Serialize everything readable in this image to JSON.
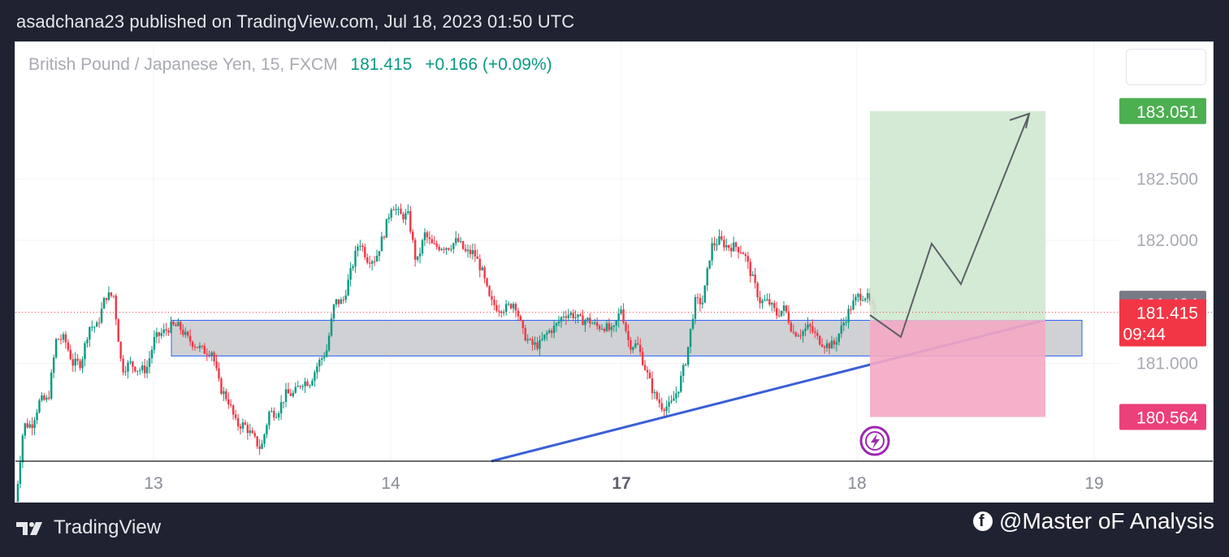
{
  "header": {
    "publish_text": "asadchana23 published on TradingView.com, Jul 18, 2023 01:50 UTC"
  },
  "legend": {
    "symbol": "British Pound / Japanese Yen, 15, FXCM",
    "last_price": "181.415",
    "change": "+0.166 (+0.09%)"
  },
  "footer": {
    "brand": "TradingView",
    "credit": "@Master oF Analysis"
  },
  "colors": {
    "up": "#089981",
    "down": "#f23645",
    "zone_fill": "#c8c9cd",
    "zone_border": "#2962ff",
    "trendline": "#3a5fd6",
    "target_fill": "#cfe8cf",
    "stop_fill": "#f4a8c4",
    "target_label": "#4caf50",
    "stop_label": "#ec407a",
    "current_label": "#f23645",
    "prev_label": "#787b86"
  },
  "chart_data": {
    "type": "candlestick",
    "title": "British Pound / Japanese Yen, 15, FXCM",
    "x_ticks": [
      {
        "label": "13",
        "bold": false
      },
      {
        "label": "14",
        "bold": false
      },
      {
        "label": "17",
        "bold": true
      },
      {
        "label": "18",
        "bold": false
      },
      {
        "label": "19",
        "bold": false
      }
    ],
    "y_ticks": [
      "182.500",
      "182.000",
      "181.000"
    ],
    "ylim": [
      179.75,
      183.7
    ],
    "price_labels": {
      "target": "183.051",
      "previous": "181.484",
      "current": "181.415",
      "countdown": "09:44",
      "stop": "180.564"
    },
    "support_zone": {
      "low": 181.06,
      "high": 181.35
    },
    "position": {
      "entry": 181.35,
      "target": 183.051,
      "stop": 180.564
    },
    "price_path": [
      [
        179.85,
        180.5,
        180.5,
        180.7
      ],
      [
        180.7,
        181.2,
        181.2,
        181.0
      ],
      [
        181.0,
        181.3,
        181.3,
        181.55
      ],
      [
        181.55,
        180.95,
        181.0,
        180.95
      ],
      [
        180.95,
        181.2,
        181.25,
        181.3
      ],
      [
        181.3,
        181.2,
        181.15,
        181.1
      ],
      [
        181.1,
        180.8,
        180.7,
        180.5
      ],
      [
        180.5,
        180.4,
        180.3,
        180.6
      ],
      [
        180.6,
        180.75,
        180.75,
        180.85
      ],
      [
        180.85,
        181.0,
        181.1,
        181.5
      ],
      [
        181.5,
        181.75,
        182.0,
        181.85
      ],
      [
        181.85,
        182.05,
        182.3,
        182.2
      ],
      [
        182.2,
        181.8,
        182.05,
        181.95
      ],
      [
        181.95,
        181.95,
        182.0,
        181.9
      ],
      [
        181.9,
        181.75,
        181.5,
        181.45
      ],
      [
        181.45,
        181.5,
        181.25,
        181.15
      ],
      [
        181.15,
        181.25,
        181.3,
        181.4
      ],
      [
        181.4,
        181.35,
        181.35,
        181.3
      ],
      [
        181.3,
        181.25,
        181.45,
        181.15
      ],
      [
        181.15,
        180.95,
        180.75,
        180.65
      ],
      [
        180.65,
        180.8,
        181.05,
        181.5
      ],
      [
        181.5,
        181.95,
        182.0,
        181.95
      ],
      [
        181.95,
        181.9,
        181.7,
        181.5
      ],
      [
        181.5,
        181.4,
        181.45,
        181.25
      ],
      [
        181.25,
        181.3,
        181.2,
        181.15
      ],
      [
        181.15,
        181.3,
        181.45,
        181.55
      ],
      [
        181.55,
        181.4
      ]
    ]
  }
}
